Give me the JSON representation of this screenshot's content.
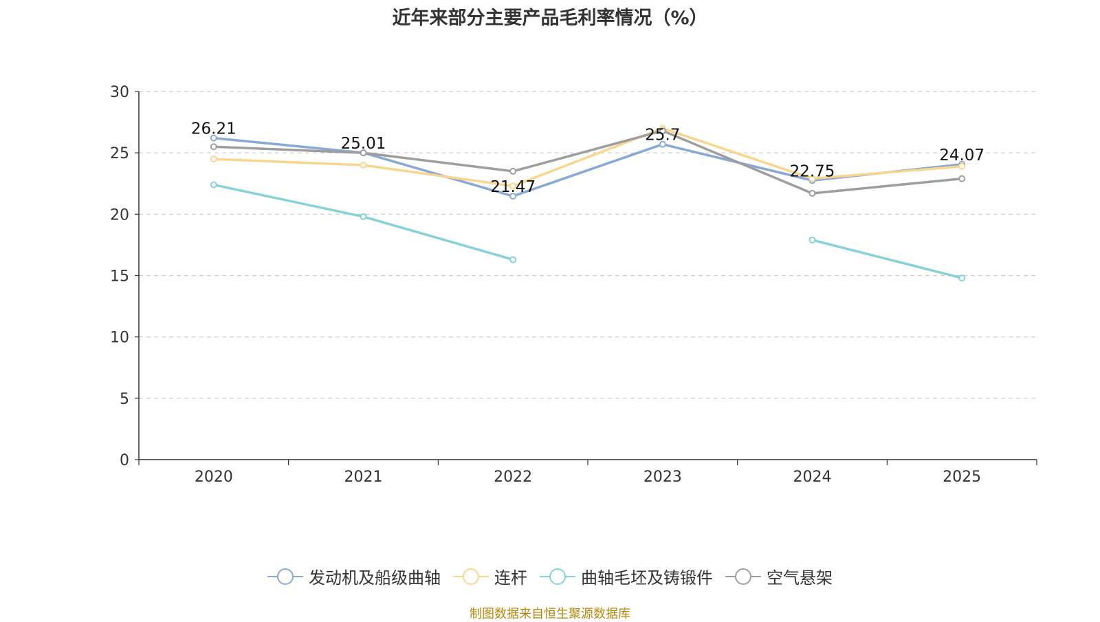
{
  "title": "近年来部分主要产品毛利率情况（%）",
  "source": "制图数据来自恒生聚源数据库",
  "colors": [
    "#8aa8d6",
    "#f9d68f",
    "#85d3d6",
    "#9e9e9e"
  ],
  "chart_data": {
    "type": "line",
    "title": "近年来部分主要产品毛利率情况（%）",
    "categories": [
      "2020",
      "2021",
      "2022",
      "2023",
      "2024",
      "2025"
    ],
    "ylim": [
      0,
      30
    ],
    "yticks": [
      0,
      5,
      10,
      15,
      20,
      25,
      30
    ],
    "grid": true,
    "legend_position": "bottom",
    "series": [
      {
        "name": "发动机及船级曲轴",
        "values": [
          26.21,
          25.01,
          21.47,
          25.7,
          22.75,
          24.07
        ],
        "labels": [
          "26.21",
          "25.01",
          "21.47",
          "25.7",
          "22.75",
          "24.07"
        ]
      },
      {
        "name": "连杆",
        "values": [
          24.5,
          24.0,
          22.3,
          27.0,
          22.9,
          23.9
        ]
      },
      {
        "name": "曲轴毛坯及铸锻件",
        "values": [
          22.4,
          19.8,
          16.3,
          null,
          17.9,
          14.8
        ]
      },
      {
        "name": "空气悬架",
        "values": [
          25.5,
          25.0,
          23.5,
          26.8,
          21.7,
          22.9
        ]
      }
    ]
  }
}
